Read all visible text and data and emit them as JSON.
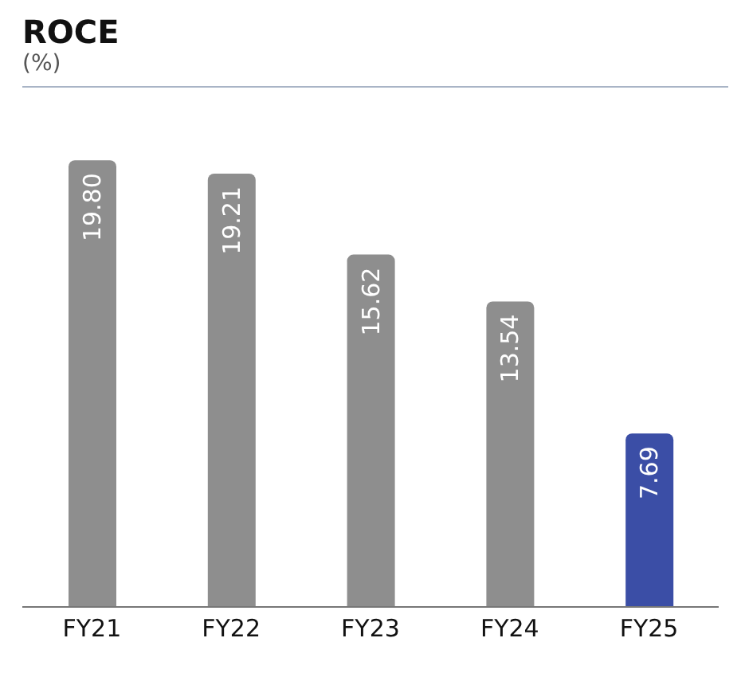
{
  "chart_data": {
    "type": "bar",
    "title": "ROCE",
    "subtitle": "(%)",
    "categories": [
      "FY21",
      "FY22",
      "FY23",
      "FY24",
      "FY25"
    ],
    "values": [
      19.8,
      19.21,
      15.62,
      13.54,
      7.69
    ],
    "value_labels": [
      "19.80",
      "19.21",
      "15.62",
      "13.54",
      "7.69"
    ],
    "colors": [
      "#8e8e8e",
      "#8e8e8e",
      "#8e8e8e",
      "#8e8e8e",
      "#3b4ea6"
    ],
    "grid": false,
    "legend": false
  }
}
